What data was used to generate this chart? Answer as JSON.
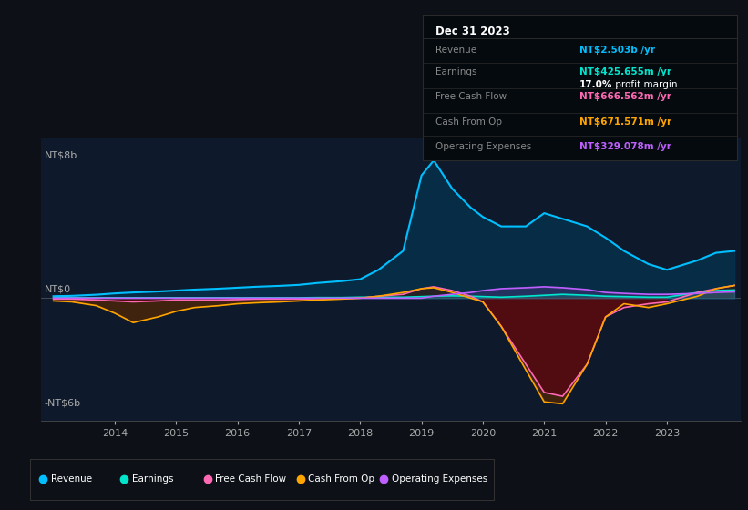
{
  "bg_color": "#0d1117",
  "plot_bg_color": "#0e1a2b",
  "ylabel_top": "NT$8b",
  "ylabel_bottom": "-NT$6b",
  "zero_label": "NT$0",
  "ylim": [
    -6.5,
    8.5
  ],
  "ylim_plot": [
    -6,
    8
  ],
  "xlim_start": 2012.8,
  "xlim_end": 2024.2,
  "xticks": [
    2014,
    2015,
    2016,
    2017,
    2018,
    2019,
    2020,
    2021,
    2022,
    2023
  ],
  "info_box": {
    "date": "Dec 31 2023",
    "revenue_label": "Revenue",
    "revenue_value": "NT$2.503b /yr",
    "revenue_color": "#00bfff",
    "earnings_label": "Earnings",
    "earnings_value": "NT$425.655m /yr",
    "earnings_color": "#00e5cc",
    "profit_pct": "17.0%",
    "profit_text": " profit margin",
    "fcf_label": "Free Cash Flow",
    "fcf_value": "NT$666.562m /yr",
    "fcf_color": "#ff69b4",
    "cashop_label": "Cash From Op",
    "cashop_value": "NT$671.571m /yr",
    "cashop_color": "#ffa500",
    "opex_label": "Operating Expenses",
    "opex_value": "NT$329.078m /yr",
    "opex_color": "#bf5fff"
  },
  "legend": [
    {
      "label": "Revenue",
      "color": "#00bfff"
    },
    {
      "label": "Earnings",
      "color": "#00e5cc"
    },
    {
      "label": "Free Cash Flow",
      "color": "#ff69b4"
    },
    {
      "label": "Cash From Op",
      "color": "#ffa500"
    },
    {
      "label": "Operating Expenses",
      "color": "#bf5fff"
    }
  ],
  "revenue_color": "#00bfff",
  "earnings_color": "#00e5cc",
  "fcf_color": "#ff69b4",
  "cashop_color": "#ffa500",
  "opex_color": "#bf5fff",
  "years": [
    2013.0,
    2013.3,
    2013.7,
    2014.0,
    2014.3,
    2014.7,
    2015.0,
    2015.3,
    2015.7,
    2016.0,
    2016.3,
    2016.7,
    2017.0,
    2017.3,
    2017.7,
    2018.0,
    2018.3,
    2018.7,
    2019.0,
    2019.2,
    2019.5,
    2019.8,
    2020.0,
    2020.3,
    2020.7,
    2021.0,
    2021.3,
    2021.7,
    2022.0,
    2022.3,
    2022.7,
    2023.0,
    2023.5,
    2023.8,
    2024.1
  ],
  "revenue": [
    0.1,
    0.12,
    0.18,
    0.25,
    0.3,
    0.35,
    0.4,
    0.45,
    0.5,
    0.55,
    0.6,
    0.65,
    0.7,
    0.8,
    0.9,
    1.0,
    1.5,
    2.5,
    6.5,
    7.3,
    5.8,
    4.8,
    4.3,
    3.8,
    3.8,
    4.5,
    4.2,
    3.8,
    3.2,
    2.5,
    1.8,
    1.5,
    2.0,
    2.4,
    2.5
  ],
  "earnings": [
    0.02,
    0.02,
    0.02,
    0.02,
    0.02,
    0.02,
    0.02,
    0.02,
    0.02,
    0.02,
    0.02,
    0.02,
    0.02,
    0.03,
    0.03,
    0.05,
    0.05,
    0.05,
    0.08,
    0.1,
    0.12,
    0.1,
    0.08,
    0.05,
    0.1,
    0.15,
    0.2,
    0.15,
    0.1,
    0.08,
    0.05,
    0.05,
    0.3,
    0.4,
    0.43
  ],
  "fcf": [
    -0.05,
    -0.05,
    -0.1,
    -0.15,
    -0.2,
    -0.15,
    -0.1,
    -0.1,
    -0.1,
    -0.08,
    -0.05,
    -0.05,
    -0.05,
    -0.03,
    -0.02,
    0.0,
    0.1,
    0.2,
    0.5,
    0.6,
    0.4,
    0.1,
    -0.2,
    -1.5,
    -3.5,
    -5.0,
    -5.2,
    -3.5,
    -1.0,
    -0.5,
    -0.3,
    -0.2,
    0.3,
    0.5,
    0.67
  ],
  "cashop": [
    -0.15,
    -0.2,
    -0.4,
    -0.8,
    -1.3,
    -1.0,
    -0.7,
    -0.5,
    -0.4,
    -0.3,
    -0.25,
    -0.2,
    -0.15,
    -0.1,
    -0.05,
    0.0,
    0.1,
    0.3,
    0.5,
    0.55,
    0.3,
    0.0,
    -0.2,
    -1.5,
    -3.8,
    -5.5,
    -5.6,
    -3.5,
    -1.0,
    -0.3,
    -0.5,
    -0.3,
    0.1,
    0.5,
    0.67
  ],
  "opex": [
    0.0,
    0.0,
    0.0,
    0.0,
    0.0,
    0.0,
    0.0,
    0.0,
    0.0,
    0.0,
    0.0,
    0.0,
    0.0,
    0.0,
    0.0,
    0.0,
    0.0,
    0.0,
    0.0,
    0.1,
    0.2,
    0.3,
    0.4,
    0.5,
    0.55,
    0.6,
    0.55,
    0.45,
    0.3,
    0.25,
    0.2,
    0.2,
    0.25,
    0.3,
    0.33
  ]
}
